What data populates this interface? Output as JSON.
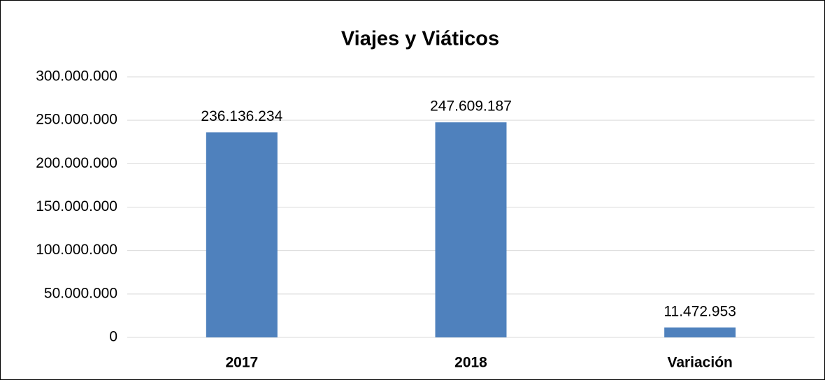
{
  "chart_data": {
    "type": "bar",
    "title": "Viajes y Viáticos",
    "categories": [
      "2017",
      "2018",
      "Variación"
    ],
    "values": [
      236136234,
      247609187,
      11472953
    ],
    "value_labels": [
      "236.136.234",
      "247.609.187",
      "11.472.953"
    ],
    "color": "#4f81bd",
    "ylim": [
      0,
      300000000
    ],
    "yticks": [
      0,
      {
        "value": 50000000,
        "label": "50.000.000"
      },
      {
        "value": 100000000,
        "label": "100.000.000"
      },
      {
        "value": 150000000,
        "label": "150.000.000"
      },
      {
        "value": 200000000,
        "label": "200.000.000"
      },
      {
        "value": 250000000,
        "label": "250.000.000"
      },
      {
        "value": 300000000,
        "label": "300.000.000"
      }
    ],
    "grid": true
  }
}
